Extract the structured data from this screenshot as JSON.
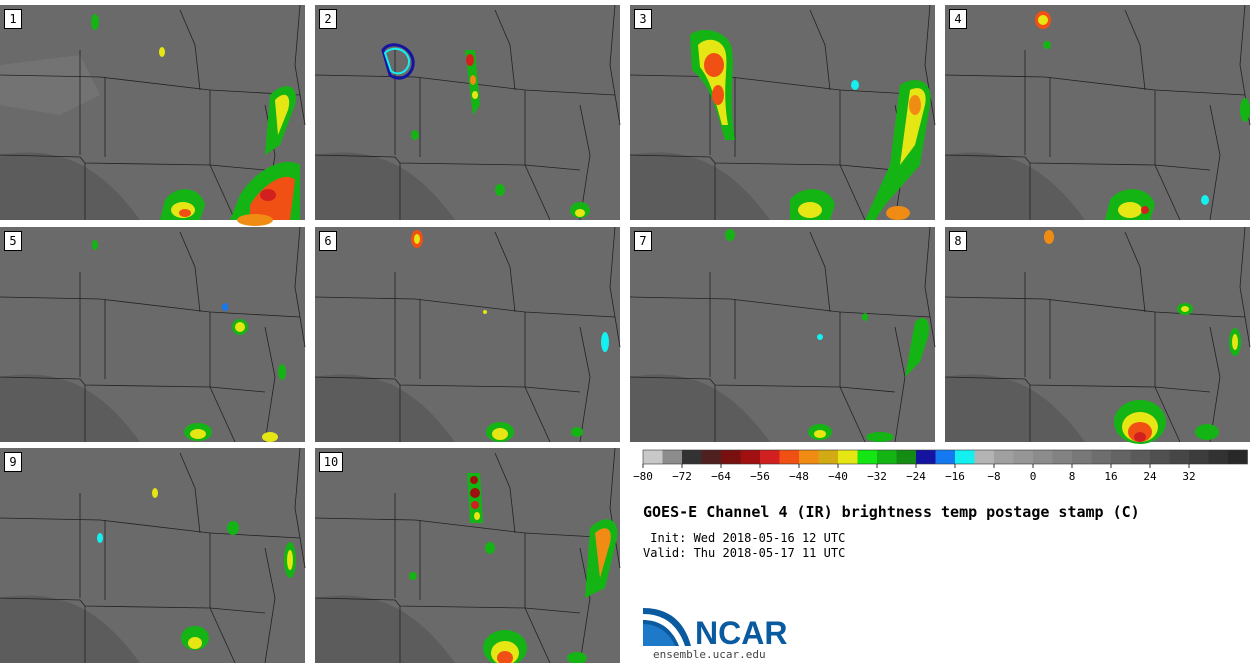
{
  "panels": [
    "1",
    "2",
    "3",
    "4",
    "5",
    "6",
    "7",
    "8",
    "9",
    "10"
  ],
  "colorbar": {
    "colors": [
      "#c8c8c8",
      "#8c8c8c",
      "#323232",
      "#502020",
      "#781010",
      "#a01010",
      "#d22020",
      "#f05014",
      "#f08c14",
      "#d2aa14",
      "#e6e614",
      "#14e614",
      "#14b414",
      "#148c14",
      "#1414a0",
      "#1478f0",
      "#14f0f0",
      "#b4b4b4",
      "#a0a0a0",
      "#969696",
      "#8c8c8c",
      "#828282",
      "#787878",
      "#6e6e6e",
      "#646464",
      "#5a5a5a",
      "#505050",
      "#464646",
      "#3c3c3c",
      "#323232",
      "#282828"
    ],
    "tick_labels": [
      "−80",
      "−72",
      "−64",
      "−56",
      "−48",
      "−40",
      "−32",
      "−24",
      "−16",
      "−8",
      "0",
      "8",
      "16",
      "24",
      "32"
    ]
  },
  "title": "GOES-E Channel 4 (IR) brightness temp postage stamp (C)",
  "init_line": " Init: Wed 2018-05-16 12 UTC",
  "valid_line": "Valid: Thu 2018-05-17 11 UTC",
  "logo_text": "NCAR",
  "url": "ensemble.ucar.edu"
}
